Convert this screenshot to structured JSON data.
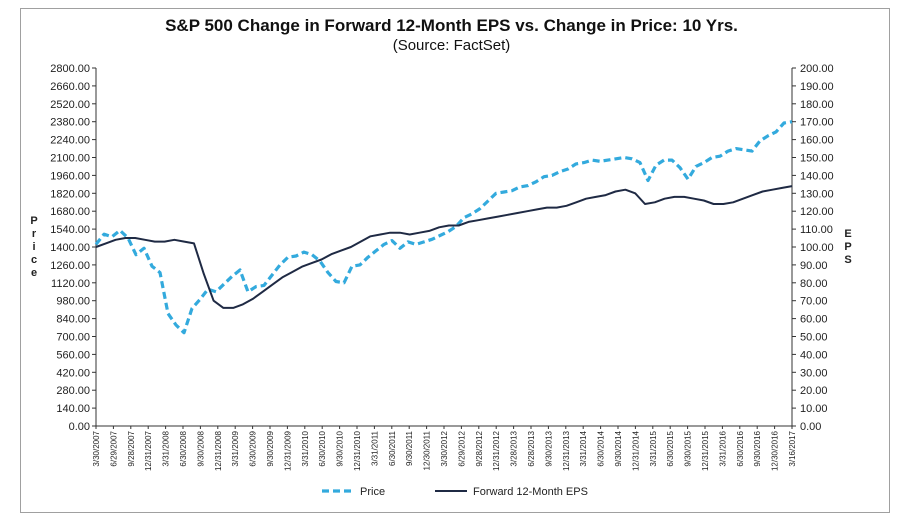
{
  "chart_data": {
    "type": "line",
    "title": "S&P 500 Change in Forward 12-Month EPS vs. Change in Price: 10 Yrs.",
    "subtitle": "(Source: FactSet)",
    "ylabel_left": "Price",
    "ylabel_right": "EPS",
    "ylim_left": [
      0,
      2800
    ],
    "ylim_right": [
      0,
      200
    ],
    "yticks_left": [
      "0.00",
      "140.00",
      "280.00",
      "420.00",
      "560.00",
      "700.00",
      "840.00",
      "980.00",
      "1120.00",
      "1260.00",
      "1400.00",
      "1540.00",
      "1680.00",
      "1820.00",
      "1960.00",
      "2100.00",
      "2240.00",
      "2380.00",
      "2520.00",
      "2660.00",
      "2800.00"
    ],
    "yticks_right": [
      "0.00",
      "10.00",
      "20.00",
      "30.00",
      "40.00",
      "50.00",
      "60.00",
      "70.00",
      "80.00",
      "90.00",
      "100.00",
      "110.00",
      "120.00",
      "130.00",
      "140.00",
      "150.00",
      "160.00",
      "170.00",
      "180.00",
      "190.00",
      "200.00"
    ],
    "x_labels": [
      "3/30/2007",
      "6/29/2007",
      "9/28/2007",
      "12/31/2007",
      "3/31/2008",
      "6/30/2008",
      "9/30/2008",
      "12/31/2008",
      "3/31/2009",
      "6/30/2009",
      "9/30/2009",
      "12/31/2009",
      "3/31/2010",
      "6/30/2010",
      "9/30/2010",
      "12/31/2010",
      "3/31/2011",
      "6/30/2011",
      "9/30/2011",
      "12/30/2011",
      "3/30/2012",
      "6/29/2012",
      "9/28/2012",
      "12/31/2012",
      "3/28/2013",
      "6/28/2013",
      "9/30/2013",
      "12/31/2013",
      "3/31/2014",
      "6/30/2014",
      "9/30/2014",
      "12/31/2014",
      "3/31/2015",
      "6/30/2015",
      "9/30/2015",
      "12/31/2015",
      "3/31/2016",
      "6/30/2016",
      "9/30/2016",
      "12/30/2016",
      "3/16/2017"
    ],
    "grid": false,
    "legend_position": "bottom",
    "series": [
      {
        "name": "Price",
        "axis": "left",
        "color": "#33aadd",
        "style": "dashed",
        "values": [
          1420,
          1500,
          1480,
          1530,
          1470,
          1340,
          1390,
          1250,
          1200,
          880,
          790,
          730,
          920,
          990,
          1070,
          1050,
          1110,
          1170,
          1220,
          1050,
          1090,
          1100,
          1180,
          1260,
          1320,
          1330,
          1360,
          1340,
          1290,
          1200,
          1130,
          1120,
          1250,
          1260,
          1320,
          1370,
          1420,
          1450,
          1390,
          1440,
          1420,
          1440,
          1460,
          1490,
          1520,
          1560,
          1630,
          1660,
          1700,
          1760,
          1820,
          1830,
          1840,
          1870,
          1880,
          1910,
          1950,
          1960,
          1990,
          2010,
          2050,
          2060,
          2080,
          2070,
          2080,
          2090,
          2100,
          2090,
          2060,
          1920,
          2040,
          2080,
          2080,
          2020,
          1930,
          2030,
          2060,
          2100,
          2110,
          2150,
          2170,
          2160,
          2150,
          2230,
          2270,
          2300,
          2370,
          2380
        ]
      },
      {
        "name": "Forward 12-Month EPS",
        "axis": "right",
        "color": "#1f2a44",
        "style": "solid",
        "values": [
          100,
          102,
          104,
          105,
          105,
          104,
          103,
          103,
          104,
          103,
          102,
          85,
          70,
          66,
          66,
          68,
          71,
          75,
          79,
          83,
          86,
          89,
          91,
          93,
          96,
          98,
          100,
          103,
          106,
          107,
          108,
          108,
          107,
          108,
          109,
          111,
          112,
          112,
          114,
          115,
          116,
          117,
          118,
          119,
          120,
          121,
          122,
          122,
          123,
          125,
          127,
          128,
          129,
          131,
          132,
          130,
          124,
          125,
          127,
          128,
          128,
          127,
          126,
          124,
          124,
          125,
          127,
          129,
          131,
          132,
          133,
          134
        ]
      }
    ]
  }
}
